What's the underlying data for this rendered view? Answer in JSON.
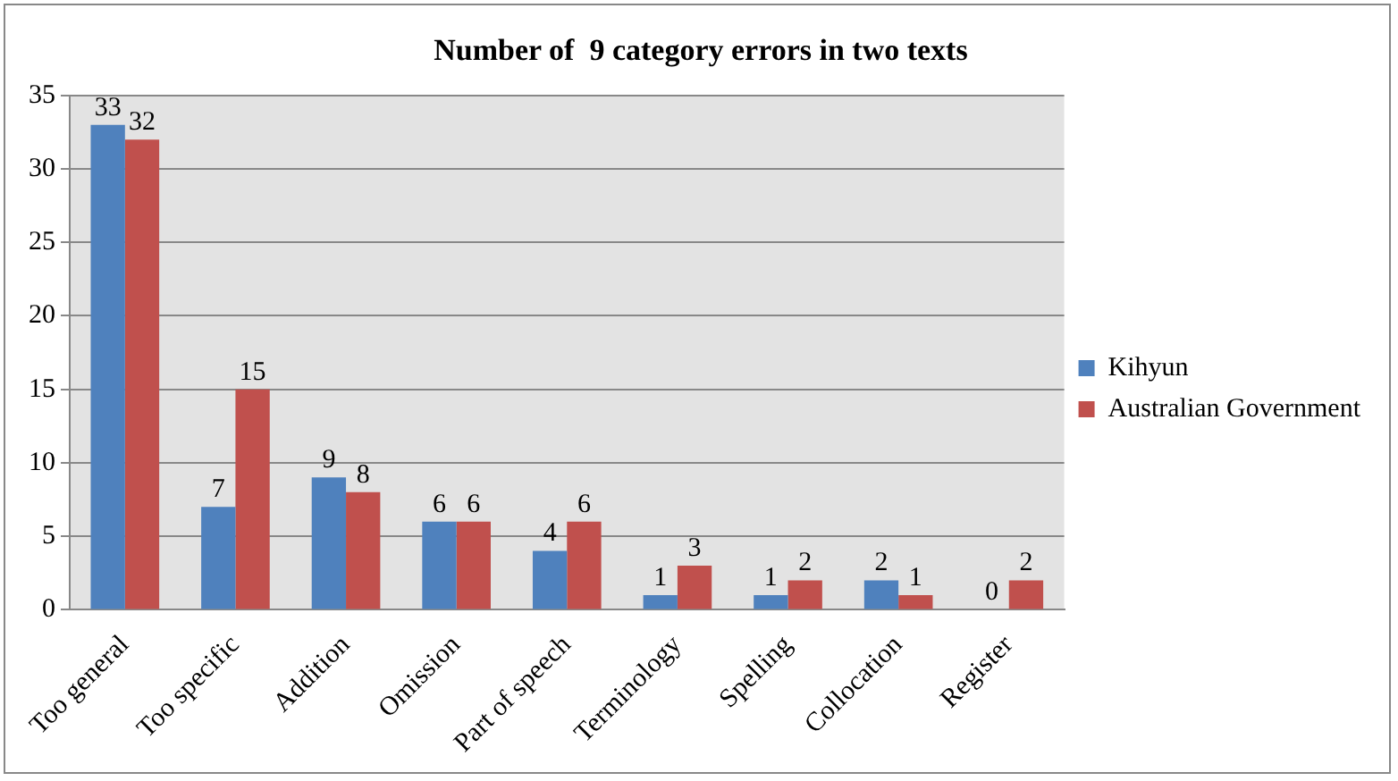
{
  "chart_data": {
    "type": "bar",
    "title": "Number of  9 category errors in two texts",
    "categories": [
      "Too general",
      "Too specific",
      "Addition",
      "Omission",
      "Part of speech",
      "Terminology",
      "Spelling",
      "Collocation",
      "Register"
    ],
    "series": [
      {
        "name": "Kihyun",
        "color": "#4f81bd",
        "values": [
          33,
          7,
          9,
          6,
          4,
          1,
          1,
          2,
          0
        ]
      },
      {
        "name": "Australian Government",
        "color": "#c0504d",
        "values": [
          32,
          15,
          8,
          6,
          6,
          3,
          2,
          1,
          2
        ]
      }
    ],
    "ylim": [
      0,
      35
    ],
    "yticks": [
      0,
      5,
      10,
      15,
      20,
      25,
      30,
      35
    ],
    "grid": "y",
    "legend": "right",
    "data_labels": true
  }
}
